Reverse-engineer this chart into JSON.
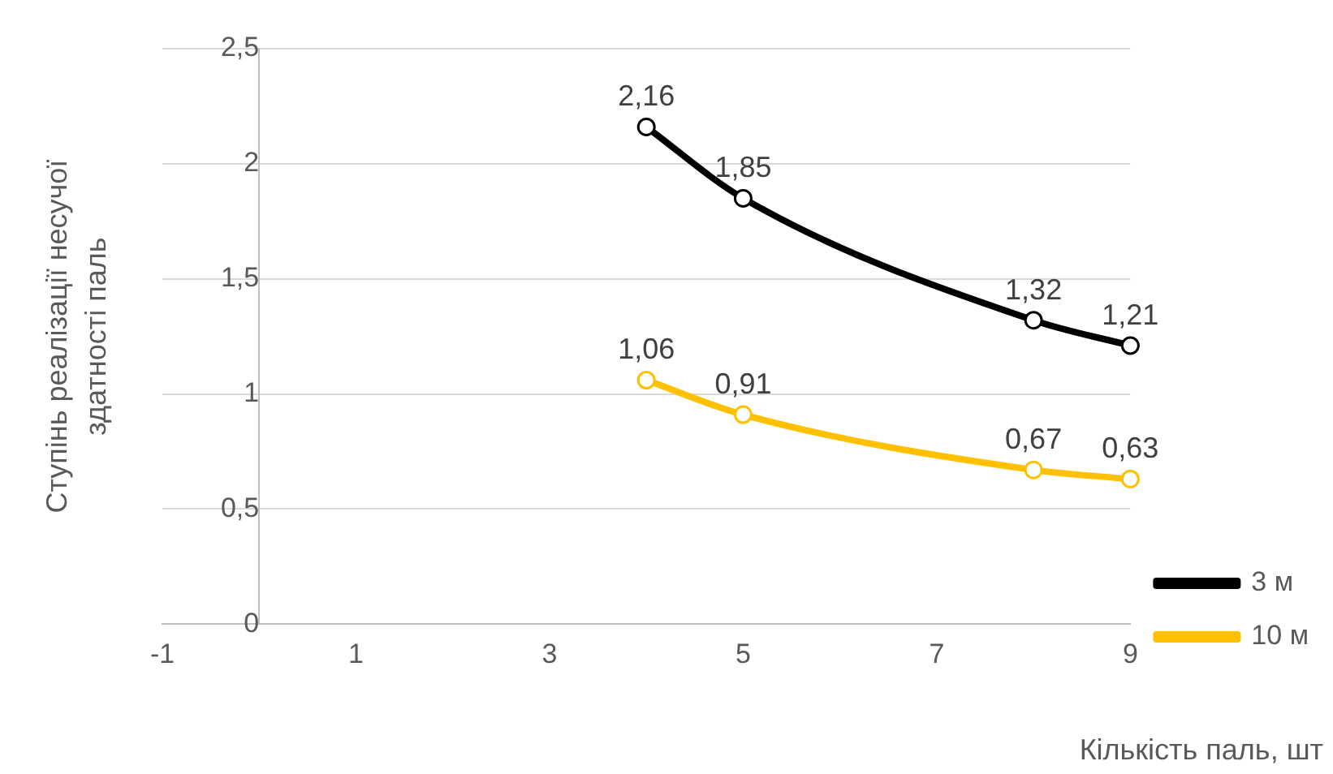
{
  "chart_data": {
    "type": "line",
    "xlabel": "Кількість паль, шт",
    "ylabel": "Ступінь реалізації несучої здатності паль",
    "x": [
      4,
      5,
      8,
      9
    ],
    "series": [
      {
        "name": "3 м",
        "color": "#000000",
        "values": [
          2.16,
          1.85,
          1.32,
          1.21
        ],
        "value_labels": [
          "2,16",
          "1,85",
          "1,32",
          "1,21"
        ]
      },
      {
        "name": "10 м",
        "color": "#ffc000",
        "values": [
          1.06,
          0.91,
          0.67,
          0.63
        ],
        "value_labels": [
          "1,06",
          "0,91",
          "0,67",
          "0,63"
        ]
      }
    ],
    "xlim": [
      -1,
      9
    ],
    "xticks": [
      -1,
      1,
      3,
      5,
      7,
      9
    ],
    "ylim": [
      0,
      2.5
    ],
    "yticks": [
      0,
      {
        "value": 0.5,
        "label": "0,5"
      },
      1,
      {
        "value": 1.5,
        "label": "1,5"
      },
      2,
      {
        "value": 2.5,
        "label": "2,5"
      }
    ],
    "grid": "y",
    "legend": "right",
    "marker": "circle",
    "line_style": "solid"
  }
}
